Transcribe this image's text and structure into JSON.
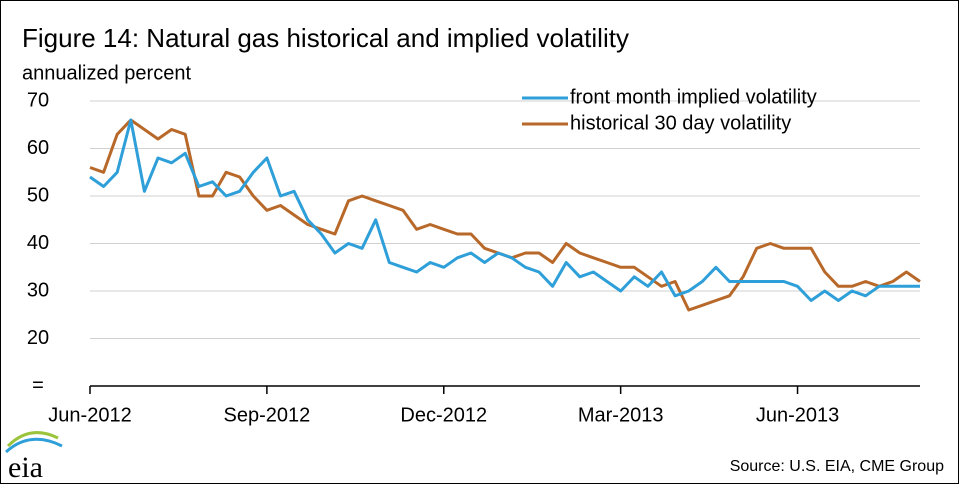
{
  "chart_data": {
    "type": "line",
    "title": "Figure 14: Natural gas historical and implied volatility",
    "subtitle": "annualized percent",
    "source": "Source: U.S. EIA, CME Group",
    "logo": "eia",
    "categories": [
      "Jun-2012",
      null,
      null,
      null,
      null,
      null,
      null,
      null,
      null,
      null,
      null,
      null,
      null,
      "Sep-2012",
      null,
      null,
      null,
      null,
      null,
      null,
      null,
      null,
      null,
      null,
      null,
      null,
      "Dec-2012",
      null,
      null,
      null,
      null,
      null,
      null,
      null,
      null,
      null,
      null,
      null,
      null,
      "Mar-2013",
      null,
      null,
      null,
      null,
      null,
      null,
      null,
      null,
      null,
      null,
      null,
      null,
      "Jun-2013",
      null,
      null,
      null,
      null,
      null,
      null,
      null,
      null,
      null
    ],
    "series": [
      {
        "name": "front month implied volatility",
        "color": "#2e9fd8",
        "values": [
          54,
          52,
          55,
          66,
          51,
          58,
          57,
          59,
          52,
          53,
          50,
          51,
          55,
          58,
          50,
          51,
          45,
          42,
          38,
          40,
          39,
          45,
          36,
          35,
          34,
          36,
          35,
          37,
          38,
          36,
          38,
          37,
          35,
          34,
          31,
          36,
          33,
          34,
          32,
          30,
          33,
          31,
          34,
          29,
          30,
          32,
          35,
          32,
          32,
          32,
          32,
          32,
          31,
          28,
          30,
          28,
          30,
          29,
          31,
          31,
          31,
          31
        ]
      },
      {
        "name": "historical 30 day volatility",
        "color": "#b8692a",
        "values": [
          56,
          55,
          63,
          66,
          64,
          62,
          64,
          63,
          50,
          50,
          55,
          54,
          50,
          47,
          48,
          46,
          44,
          43,
          42,
          49,
          50,
          49,
          48,
          47,
          43,
          44,
          43,
          42,
          42,
          39,
          38,
          37,
          38,
          38,
          36,
          40,
          38,
          37,
          36,
          35,
          35,
          33,
          31,
          32,
          26,
          27,
          28,
          29,
          33,
          39,
          40,
          39,
          39,
          39,
          34,
          31,
          31,
          32,
          31,
          32,
          34,
          32
        ]
      }
    ],
    "ylim": [
      10,
      70
    ],
    "yticks": [
      {
        "value": 10,
        "label": "="
      },
      20,
      30,
      40,
      50,
      60,
      70
    ],
    "grid": true,
    "legend": "top-right"
  }
}
